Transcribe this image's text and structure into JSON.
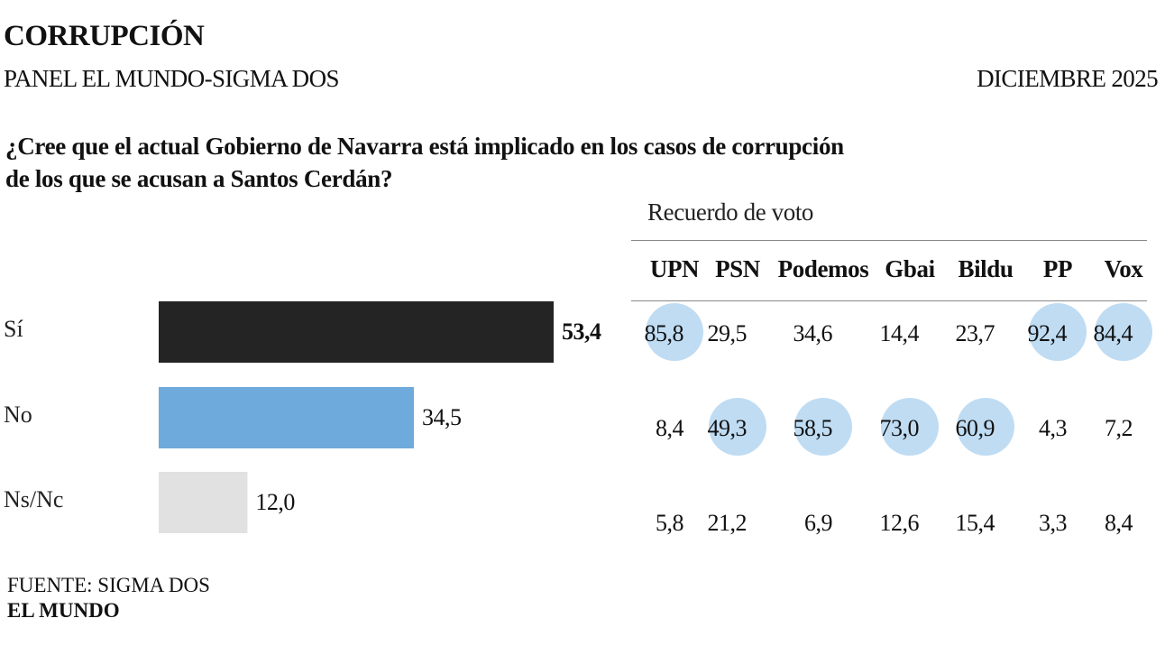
{
  "header": {
    "title": "CORRUPCIÓN",
    "subtitle": "PANEL EL MUNDO-SIGMA DOS",
    "date": "DICIEMBRE 2025"
  },
  "question": {
    "line1": "¿Cree que el actual Gobierno de Navarra está implicado en los casos de corrupción",
    "line2": "de los que se acusan a Santos Cerdán?"
  },
  "footer": {
    "source": "FUENTE: SIGMA DOS",
    "brand": "EL MUNDO"
  },
  "chart_data": [
    {
      "type": "bar",
      "orientation": "horizontal",
      "title": "¿Cree que el actual Gobierno de Navarra está implicado en los casos de corrupción de los que se acusan a Santos Cerdán?",
      "categories": [
        "Sí",
        "No",
        "Ns/Nc"
      ],
      "values": [
        53.4,
        34.5,
        12.0
      ],
      "value_labels": [
        "53,4",
        "34,5",
        "12,0"
      ],
      "colors": [
        "#242424",
        "#6eaadb",
        "#e1e1e1"
      ],
      "highlight_bold": [
        true,
        false,
        false
      ],
      "xlabel": "",
      "ylabel": "",
      "xlim": [
        0,
        53.4
      ],
      "grid": false,
      "legend": "none"
    },
    {
      "type": "table",
      "title": "Recuerdo de voto",
      "columns": [
        "UPN",
        "PSN",
        "Podemos",
        "Gbai",
        "Bildu",
        "PP",
        "Vox"
      ],
      "rows": [
        "Sí",
        "No",
        "Ns/Nc"
      ],
      "values": [
        [
          "85,8",
          "29,5",
          "34,6",
          "14,4",
          "23,7",
          "92,4",
          "84,4"
        ],
        [
          "8,4",
          "49,3",
          "58,5",
          "73,0",
          "60,9",
          "4,3",
          "7,2"
        ],
        [
          "5,8",
          "21,2",
          "6,9",
          "12,6",
          "15,4",
          "3,3",
          "8,4"
        ]
      ],
      "highlighted": [
        [
          true,
          false,
          false,
          false,
          false,
          true,
          true
        ],
        [
          false,
          true,
          true,
          true,
          true,
          false,
          false
        ],
        [
          false,
          false,
          false,
          false,
          false,
          false,
          false
        ]
      ],
      "highlight_color": "#bfdcf3"
    }
  ]
}
